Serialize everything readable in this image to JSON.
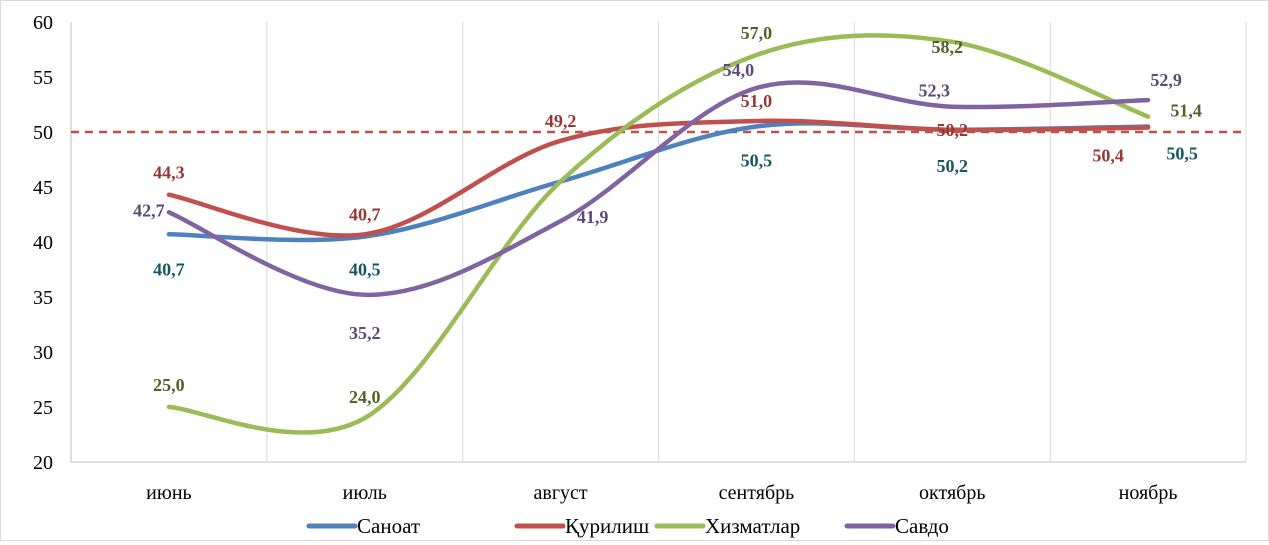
{
  "chart_data": {
    "type": "line",
    "title": "",
    "xlabel": "",
    "ylabel": "",
    "categories": [
      "июнь",
      "июль",
      "август",
      "сентябрь",
      "октябрь",
      "ноябрь"
    ],
    "ylim": [
      20,
      60
    ],
    "yticks": [
      "20",
      "25",
      "30",
      "35",
      "40",
      "45",
      "50",
      "55",
      "60"
    ],
    "grid": "vertical",
    "smooth": true,
    "reference_line": {
      "value": 50,
      "style": "dashed",
      "color": "#C0504D"
    },
    "legend_position": "bottom",
    "series": [
      {
        "name": "Саноат",
        "color": "#4F81BD",
        "label_color": "#17575F",
        "values": [
          40.7,
          40.5,
          null,
          50.5,
          50.2,
          50.5
        ],
        "labels": [
          "40,7",
          "40,5",
          "",
          "50,5",
          "50,2",
          "50,5"
        ]
      },
      {
        "name": "Қурилиш",
        "color": "#C0504D",
        "label_color": "#953735",
        "values": [
          44.3,
          40.7,
          49.2,
          51.0,
          50.2,
          50.4
        ],
        "labels": [
          "44,3",
          "40,7",
          "49,2",
          "51,0",
          "50,2",
          "50,4"
        ]
      },
      {
        "name": "Хизматлар",
        "color": "#9BBB59",
        "label_color": "#4F6228",
        "values": [
          25.0,
          24.0,
          45.5,
          57.0,
          58.2,
          51.4
        ],
        "labels": [
          "25,0",
          "24,0",
          "",
          "57,0",
          "58,2",
          "51,4"
        ]
      },
      {
        "name": "Савдо",
        "color": "#8064A2",
        "label_color": "#5F497A",
        "values": [
          42.7,
          35.2,
          41.9,
          54.0,
          52.3,
          52.9
        ],
        "labels": [
          "42,7",
          "35,2",
          "41,9",
          "54,0",
          "52,3",
          "52,9"
        ]
      }
    ]
  }
}
